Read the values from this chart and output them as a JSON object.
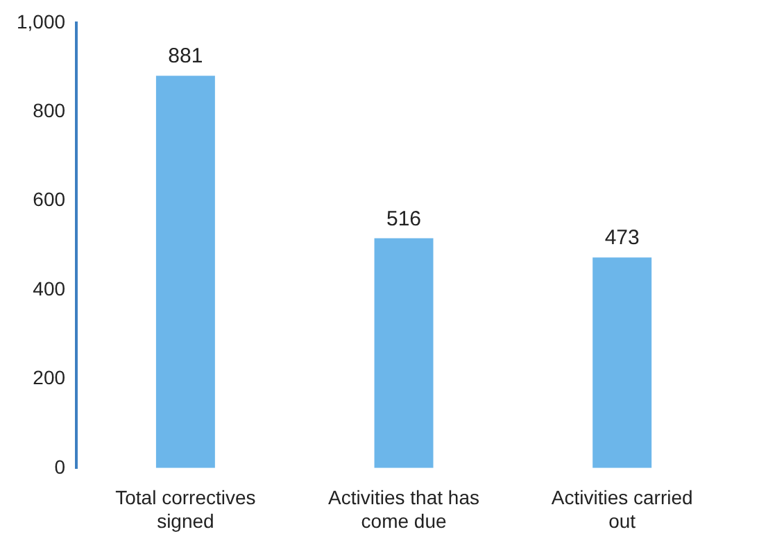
{
  "chart_data": {
    "type": "bar",
    "categories": [
      "Total correctives signed",
      "Activities that has come due",
      "Activities carried out"
    ],
    "values": [
      881,
      516,
      473
    ],
    "color": "#6cb6ea",
    "ylim": [
      0,
      1000
    ],
    "yticks": [
      0,
      200,
      400,
      600,
      800,
      {
        "value": 1000,
        "label": "1,000"
      }
    ],
    "grid": false,
    "data_labels": true,
    "legend": false
  }
}
